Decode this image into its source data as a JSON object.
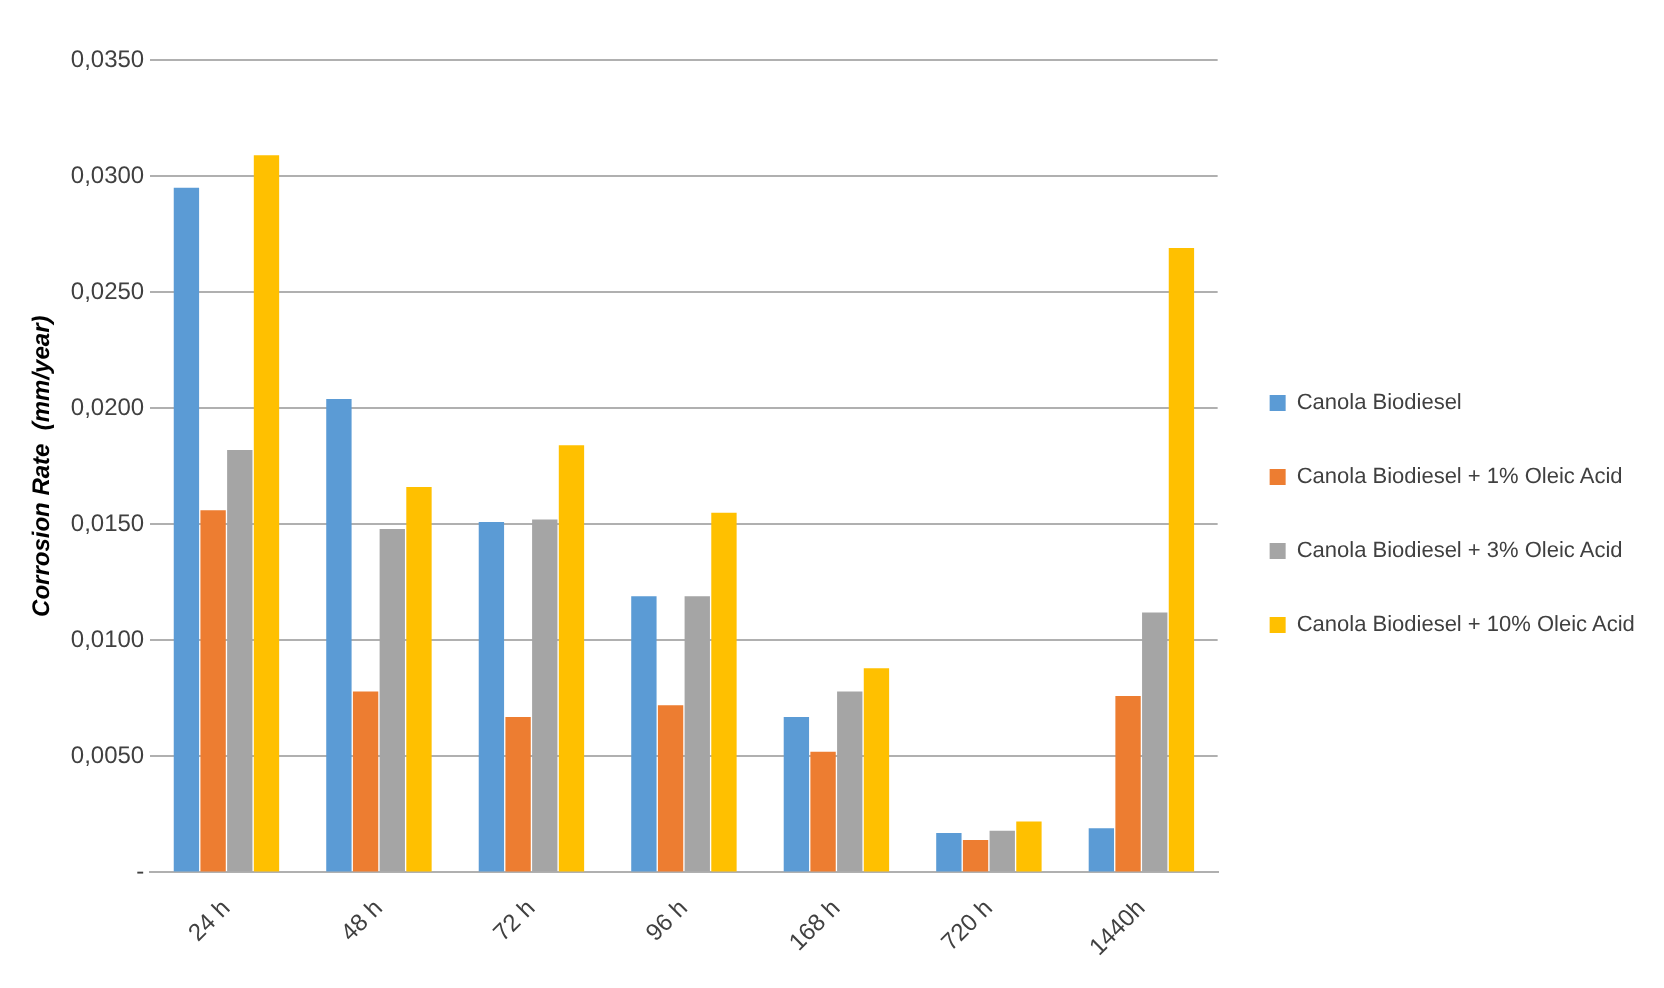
{
  "chart_data": {
    "type": "bar",
    "ylabel": "Corrosion Rate  (mm/year)",
    "categories": [
      "24 h",
      "48 h",
      "72 h",
      "96 h",
      "168 h",
      "720 h",
      "1440h"
    ],
    "series": [
      {
        "name": "Canola Biodiesel",
        "color": "#5b9bd5",
        "values": [
          0.0295,
          0.0204,
          0.0151,
          0.0119,
          0.0067,
          0.0017,
          0.0019
        ]
      },
      {
        "name": "Canola Biodiesel + 1% Oleic Acid",
        "color": "#ed7d31",
        "values": [
          0.0156,
          0.0078,
          0.0067,
          0.0072,
          0.0052,
          0.0014,
          0.0076
        ]
      },
      {
        "name": "Canola Biodiesel + 3% Oleic Acid",
        "color": "#a5a5a5",
        "values": [
          0.0182,
          0.0148,
          0.0152,
          0.0119,
          0.0078,
          0.0018,
          0.0112
        ]
      },
      {
        "name": "Canola Biodiesel + 10% Oleic Acid",
        "color": "#ffc000",
        "values": [
          0.0309,
          0.0166,
          0.0184,
          0.0155,
          0.0088,
          0.0022,
          0.0269
        ]
      }
    ],
    "ylim": [
      0,
      0.035
    ],
    "yticks": [
      {
        "value": 0,
        "label": "-"
      },
      {
        "value": 0.005,
        "label": "0,0050"
      },
      {
        "value": 0.01,
        "label": "0,0100"
      },
      {
        "value": 0.015,
        "label": "0,0150"
      },
      {
        "value": 0.02,
        "label": "0,0200"
      },
      {
        "value": 0.025,
        "label": "0,0250"
      },
      {
        "value": 0.03,
        "label": "0,0300"
      },
      {
        "value": 0.035,
        "label": "0,0350"
      }
    ],
    "grid": "y",
    "legend": "right"
  }
}
